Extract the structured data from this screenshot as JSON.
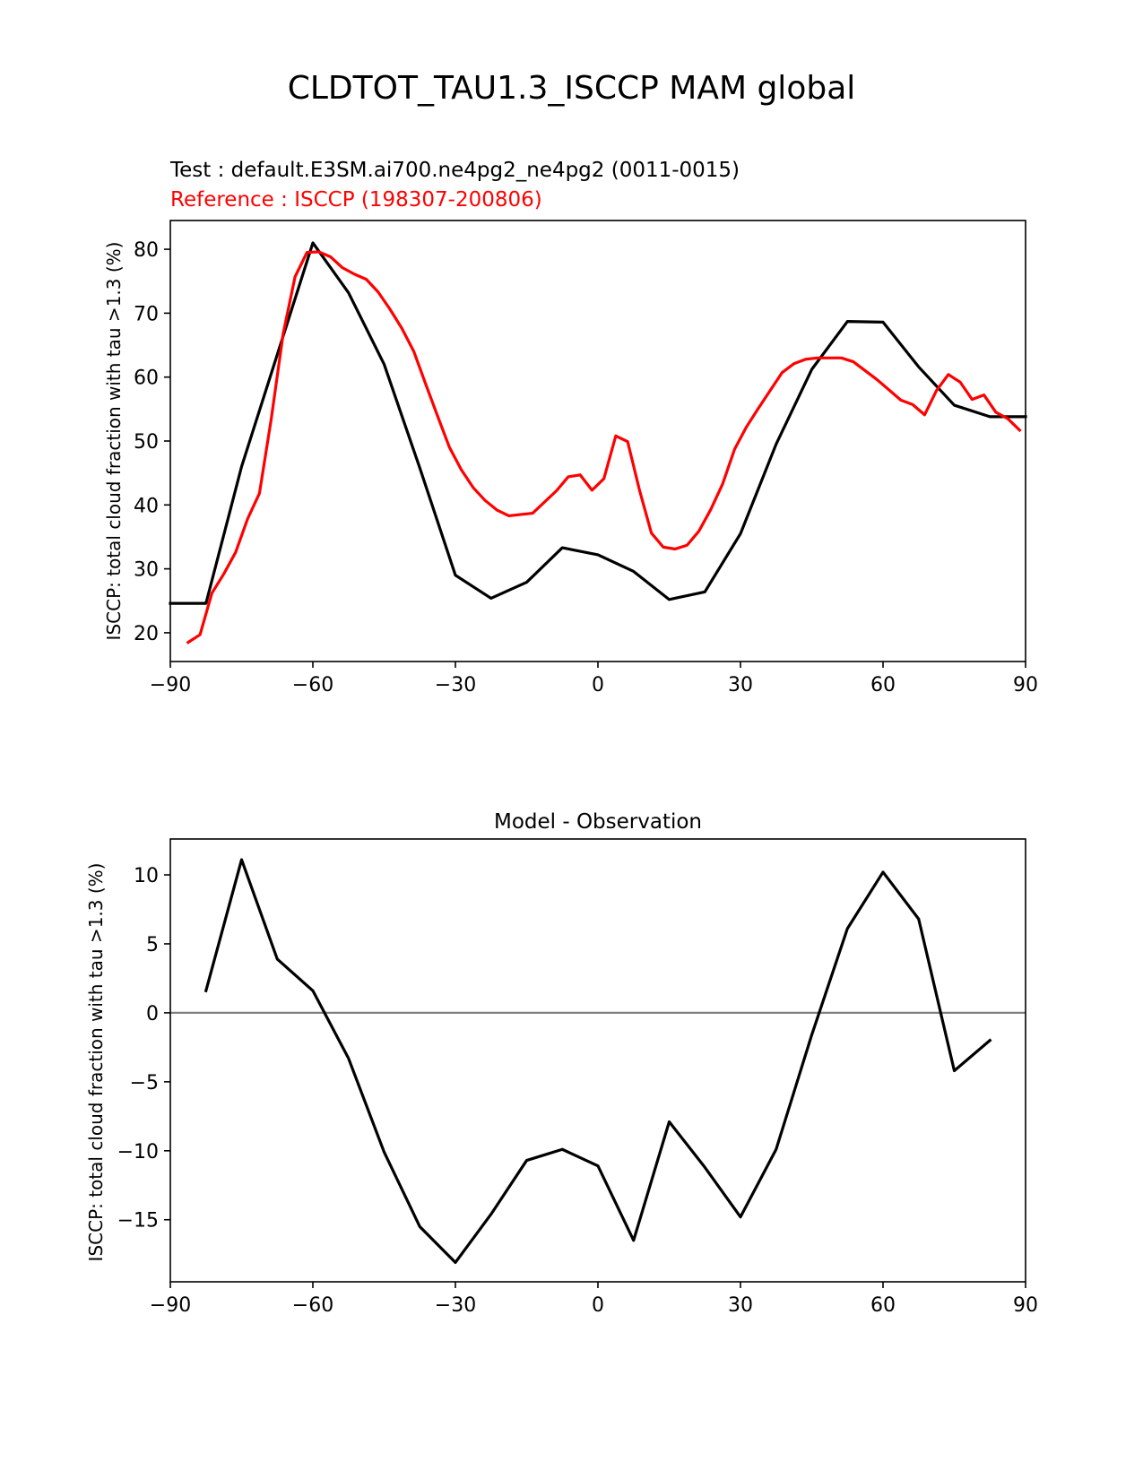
{
  "figure_title": "CLDTOT_TAU1.3_ISCCP MAM global",
  "colors": {
    "test": "#000000",
    "reference": "#ff0000",
    "zero_line": "#808080"
  },
  "chart_data": [
    {
      "type": "line",
      "subtitle_test": "Test : default.E3SM.ai700.ne4pg2_ne4pg2 (0011-0015)",
      "subtitle_reference": "Reference : ISCCP (198307-200806)",
      "xlabel": "",
      "ylabel": "ISCCP: total cloud fraction with tau >1.3 (%)",
      "xlim": [
        -90,
        90
      ],
      "ylim": [
        15.5,
        84.5
      ],
      "xticks": [
        -90,
        -60,
        -30,
        0,
        30,
        60,
        90
      ],
      "xtick_labels": [
        "−90",
        "−60",
        "−30",
        "0",
        "30",
        "60",
        "90"
      ],
      "yticks": [
        20,
        30,
        40,
        50,
        60,
        70,
        80
      ],
      "ytick_labels": [
        "20",
        "30",
        "40",
        "50",
        "60",
        "70",
        "80"
      ],
      "series": [
        {
          "key": "test",
          "x": [
            -90,
            -82.5,
            -75,
            -67.5,
            -60,
            -52.5,
            -45,
            -37.5,
            -30,
            -22.5,
            -15,
            -7.5,
            0,
            7.5,
            15,
            22.5,
            30,
            37.5,
            45,
            52.5,
            60,
            67.5,
            75,
            82.5,
            90
          ],
          "y": [
            24.6,
            24.6,
            46.0,
            63.5,
            81.0,
            73.2,
            62.0,
            45.8,
            29.0,
            25.4,
            27.9,
            33.3,
            32.2,
            29.6,
            25.2,
            26.4,
            35.5,
            49.5,
            61.2,
            68.7,
            68.6,
            61.6,
            55.6,
            53.8,
            53.8
          ]
        },
        {
          "key": "reference",
          "x": [
            -86.25,
            -83.75,
            -81.25,
            -78.75,
            -76.25,
            -73.75,
            -71.25,
            -68.75,
            -66.25,
            -63.75,
            -61.25,
            -58.75,
            -56.25,
            -53.75,
            -51.25,
            -48.75,
            -46.25,
            -43.75,
            -41.25,
            -38.75,
            -36.25,
            -33.75,
            -31.25,
            -28.75,
            -26.25,
            -23.75,
            -21.25,
            -18.75,
            -13.75,
            -8.75,
            -6.25,
            -3.75,
            -1.25,
            1.25,
            3.75,
            6.25,
            8.75,
            11.25,
            13.75,
            16.25,
            18.75,
            21.25,
            23.75,
            26.25,
            28.75,
            31.25,
            33.75,
            36.25,
            38.75,
            41.25,
            43.75,
            46.25,
            48.75,
            51.25,
            53.75,
            56.25,
            58.75,
            61.25,
            63.75,
            66.25,
            68.75,
            71.25,
            73.75,
            76.25,
            78.75,
            81.25,
            83.75,
            86.25,
            88.75
          ],
          "y": [
            18.5,
            19.7,
            26.2,
            29.2,
            32.6,
            37.8,
            41.8,
            53.5,
            66.8,
            75.7,
            79.5,
            79.6,
            78.8,
            77.1,
            76.1,
            75.3,
            73.3,
            70.6,
            67.6,
            64.0,
            58.9,
            53.9,
            49.0,
            45.5,
            42.7,
            40.7,
            39.2,
            38.3,
            38.7,
            42.2,
            44.4,
            44.7,
            42.3,
            44.1,
            50.8,
            49.9,
            42.3,
            35.6,
            33.4,
            33.1,
            33.7,
            35.9,
            39.3,
            43.3,
            48.7,
            52.2,
            55.1,
            57.9,
            60.7,
            62.1,
            62.8,
            63.0,
            63.0,
            63.0,
            62.4,
            61.0,
            59.6,
            58.0,
            56.4,
            55.7,
            54.1,
            57.9,
            60.4,
            59.2,
            56.5,
            57.2,
            54.5,
            53.5,
            51.7
          ]
        }
      ]
    },
    {
      "type": "line",
      "title": "Model - Observation",
      "xlabel": "",
      "ylabel": "ISCCP: total cloud fraction with tau >1.3 (%)",
      "xlim": [
        -90,
        90
      ],
      "ylim": [
        -19.5,
        12.6
      ],
      "xticks": [
        -90,
        -60,
        -30,
        0,
        30,
        60,
        90
      ],
      "xtick_labels": [
        "−90",
        "−60",
        "−30",
        "0",
        "30",
        "60",
        "90"
      ],
      "yticks": [
        -15,
        -10,
        -5,
        0,
        5,
        10
      ],
      "ytick_labels": [
        "−15",
        "−10",
        "−5",
        "0",
        "5",
        "10"
      ],
      "zero_line": 0,
      "series": [
        {
          "key": "diff",
          "x": [
            -82.5,
            -75,
            -67.5,
            -60,
            -52.5,
            -45,
            -37.5,
            -30,
            -22.5,
            -15,
            -7.5,
            0,
            7.5,
            15,
            22.5,
            30,
            37.5,
            45,
            52.5,
            60,
            67.5,
            75,
            82.5
          ],
          "y": [
            1.6,
            11.1,
            3.9,
            1.6,
            -3.3,
            -10.1,
            -15.5,
            -18.1,
            -14.6,
            -10.7,
            -9.9,
            -11.1,
            -16.5,
            -7.9,
            -11.2,
            -14.8,
            -9.9,
            -1.6,
            6.1,
            10.2,
            6.8,
            -4.2,
            -2.0
          ]
        }
      ]
    }
  ]
}
